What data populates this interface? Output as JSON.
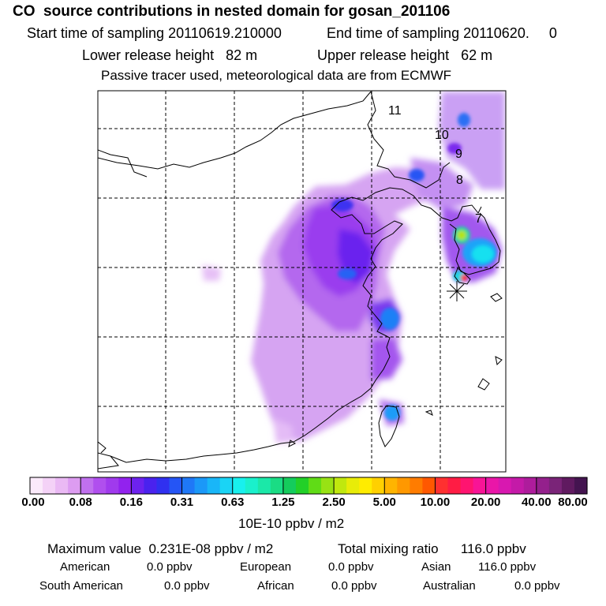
{
  "header": {
    "title": "CO  source contributions in nested domain for gosan_201106",
    "start_time": "Start time of sampling 20110619.210000",
    "end_time": "End time of sampling 20110620.     0",
    "lower_height": "Lower release height   82 m",
    "upper_height": "Upper release height   62 m",
    "tracer_note": "Passive tracer used, meteorological data are from ECMWF"
  },
  "map": {
    "day_labels": [
      "11",
      "10",
      "9",
      "8",
      "7"
    ],
    "receptor_marker": "asterisk-icon"
  },
  "colorbar": {
    "ticks": [
      "0.00",
      "0.08",
      "0.16",
      "0.31",
      "0.63",
      "1.25",
      "2.50",
      "5.00",
      "10.00",
      "20.00",
      "40.00",
      "80.00"
    ],
    "colors": [
      "#fbeafb",
      "#f4d2f7",
      "#eab9f4",
      "#dd9cf1",
      "#c070ee",
      "#b04fee",
      "#a03aed",
      "#9222ee",
      "#6d22ee",
      "#4a22ee",
      "#3030f0",
      "#2555f5",
      "#1f78f7",
      "#1b98f8",
      "#19b6f8",
      "#1ad4f5",
      "#18f0ee",
      "#1af0cc",
      "#1be8a8",
      "#1adc84",
      "#14cc5c",
      "#22d028",
      "#60dc16",
      "#98e214",
      "#c0e80e",
      "#e8ec08",
      "#ffec00",
      "#ffd000",
      "#ffb400",
      "#ff9800",
      "#ff7c00",
      "#ff5800",
      "#ff3030",
      "#ff1c44",
      "#ff1470",
      "#f81496",
      "#ea16a8",
      "#d818b0",
      "#c41aa8",
      "#ae1c9c",
      "#94208c",
      "#7a2478",
      "#601a60",
      "#441450"
    ],
    "unit": "10E-10 ppbv / m2"
  },
  "summary": {
    "maximum_value": "Maximum value  0.231E-08 ppbv / m2",
    "total_mixing": "Total mixing ratio      116.0 ppbv",
    "american_label": "American",
    "american_value": "0.0 ppbv",
    "european_label": "European",
    "european_value": "0.0 ppbv",
    "asian_label": "Asian",
    "asian_value": "116.0 ppbv",
    "south_american_label": "South American",
    "south_american_value": "0.0 ppbv",
    "african_label": "African",
    "african_value": "0.0 ppbv",
    "australian_label": "Australian",
    "australian_value": "0.0 ppbv"
  }
}
